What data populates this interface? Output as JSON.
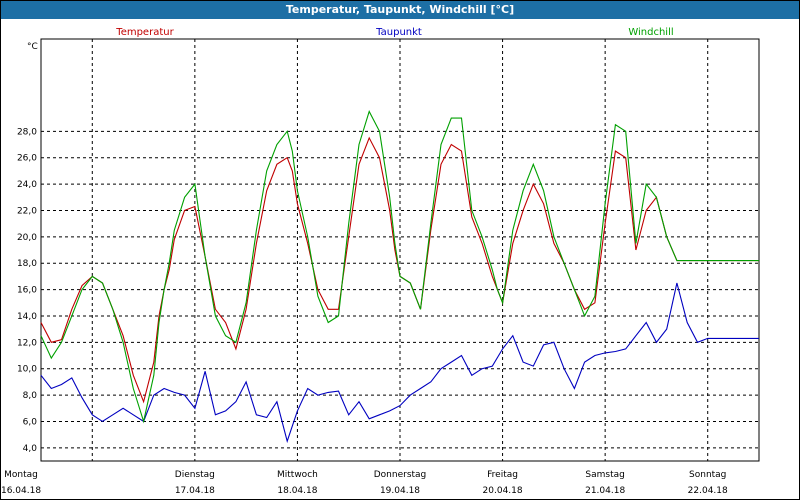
{
  "title": "Temperatur, Taupunkt, Windchill [°C]",
  "chart_data": {
    "type": "line",
    "title": "Temperatur, Taupunkt, Windchill [°C]",
    "y_unit": "°C",
    "ylim": [
      3.0,
      35.0
    ],
    "yticks": [
      "4,0",
      "6,0",
      "8,0",
      "10,0",
      "12,0",
      "14,0",
      "16,0",
      "18,0",
      "20,0",
      "22,0",
      "24,0",
      "26,0",
      "28,0"
    ],
    "ytick_values": [
      4,
      6,
      8,
      10,
      12,
      14,
      16,
      18,
      20,
      22,
      24,
      26,
      28
    ],
    "xlim": [
      0,
      7
    ],
    "grid": true,
    "days": [
      {
        "name": "Montag",
        "date": "16.04.18"
      },
      {
        "name": "Dienstag",
        "date": "17.04.18"
      },
      {
        "name": "Mittwoch",
        "date": "18.04.18"
      },
      {
        "name": "Donnerstag",
        "date": "19.04.18"
      },
      {
        "name": "Freitag",
        "date": "20.04.18"
      },
      {
        "name": "Samstag",
        "date": "21.04.18"
      },
      {
        "name": "Sonntag",
        "date": "22.04.18"
      }
    ],
    "series": [
      {
        "name": "Temperatur",
        "color": "#c00000",
        "x": [
          0,
          0.1,
          0.2,
          0.3,
          0.4,
          0.5,
          0.6,
          0.7,
          0.8,
          0.9,
          1.0,
          1.1,
          1.15,
          1.2,
          1.25,
          1.3,
          1.4,
          1.5,
          1.6,
          1.7,
          1.8,
          1.9,
          2.0,
          2.1,
          2.2,
          2.3,
          2.4,
          2.45,
          2.5,
          2.6,
          2.7,
          2.8,
          2.9,
          3.0,
          3.1,
          3.2,
          3.3,
          3.4,
          3.45,
          3.5,
          3.6,
          3.7,
          3.8,
          3.9,
          4.0,
          4.1,
          4.2,
          4.3,
          4.4,
          4.45,
          4.5,
          4.6,
          4.7,
          4.8,
          4.9,
          5.0,
          5.1,
          5.2,
          5.3,
          5.4,
          5.5,
          5.6,
          5.7,
          5.8,
          5.9,
          6.0,
          6.1,
          6.2,
          6.3,
          6.4,
          6.5,
          6.6,
          6.7,
          6.8,
          6.9,
          7.0
        ],
        "values": [
          13.5,
          12.0,
          12.2,
          14.5,
          16.3,
          17.0,
          16.5,
          14.5,
          12.5,
          9.5,
          7.5,
          10.5,
          14.0,
          16.0,
          17.5,
          19.8,
          22.0,
          22.3,
          18.5,
          14.5,
          13.5,
          11.5,
          14.5,
          19.5,
          23.5,
          25.5,
          26.0,
          25.0,
          22.5,
          19.5,
          16.0,
          14.5,
          14.5,
          20.0,
          25.5,
          27.5,
          26.0,
          22.0,
          19.0,
          17.0,
          16.5,
          14.5,
          20.5,
          25.5,
          27.0,
          26.5,
          21.5,
          19.5,
          17.0,
          16.0,
          15.0,
          19.5,
          22.0,
          24.0,
          22.5,
          19.5,
          18.0,
          16.0,
          14.5,
          15.0,
          21.0,
          26.5,
          26.0,
          19.0,
          22.0,
          23.0,
          20.0,
          18.2,
          18.2,
          18.2,
          18.2,
          18.2,
          18.2,
          18.2,
          18.2,
          18.2
        ]
      },
      {
        "name": "Taupunkt",
        "color": "#0000c0",
        "x": [
          0,
          0.1,
          0.2,
          0.3,
          0.4,
          0.5,
          0.6,
          0.7,
          0.8,
          0.9,
          1.0,
          1.1,
          1.2,
          1.3,
          1.4,
          1.5,
          1.6,
          1.7,
          1.8,
          1.9,
          2.0,
          2.1,
          2.2,
          2.3,
          2.4,
          2.5,
          2.6,
          2.7,
          2.8,
          2.9,
          3.0,
          3.1,
          3.2,
          3.3,
          3.4,
          3.5,
          3.6,
          3.7,
          3.8,
          3.9,
          4.0,
          4.1,
          4.2,
          4.3,
          4.4,
          4.5,
          4.6,
          4.7,
          4.8,
          4.9,
          5.0,
          5.1,
          5.2,
          5.3,
          5.4,
          5.5,
          5.6,
          5.7,
          5.8,
          5.9,
          6.0,
          6.1,
          6.2,
          6.3,
          6.4,
          6.5,
          6.6,
          6.7,
          6.8,
          6.9,
          7.0
        ],
        "values": [
          9.5,
          8.5,
          8.8,
          9.3,
          7.8,
          6.5,
          6.0,
          6.5,
          7.0,
          6.5,
          6.0,
          8.0,
          8.5,
          8.2,
          8.0,
          7.0,
          9.8,
          6.5,
          6.8,
          7.5,
          9.0,
          6.5,
          6.3,
          7.5,
          4.5,
          6.8,
          8.5,
          8.0,
          8.2,
          8.3,
          6.5,
          7.5,
          6.2,
          6.5,
          6.8,
          7.2,
          8.0,
          8.5,
          9.0,
          10.0,
          10.5,
          11.0,
          9.5,
          10.0,
          10.2,
          11.5,
          12.5,
          10.5,
          10.2,
          11.8,
          12.0,
          10.0,
          8.5,
          10.5,
          11.0,
          11.2,
          11.3,
          11.5,
          12.5,
          13.5,
          12.0,
          13.0,
          16.5,
          13.5,
          12.0,
          12.3,
          12.3,
          12.3,
          12.3,
          12.3,
          12.3
        ]
      },
      {
        "name": "Windchill",
        "color": "#00a000",
        "x": [
          0,
          0.1,
          0.2,
          0.3,
          0.4,
          0.5,
          0.6,
          0.7,
          0.8,
          0.9,
          1.0,
          1.1,
          1.15,
          1.2,
          1.25,
          1.3,
          1.4,
          1.5,
          1.6,
          1.7,
          1.8,
          1.9,
          2.0,
          2.1,
          2.2,
          2.3,
          2.4,
          2.45,
          2.5,
          2.6,
          2.7,
          2.8,
          2.9,
          3.0,
          3.1,
          3.2,
          3.3,
          3.4,
          3.45,
          3.5,
          3.6,
          3.7,
          3.8,
          3.9,
          4.0,
          4.1,
          4.2,
          4.3,
          4.4,
          4.45,
          4.5,
          4.6,
          4.7,
          4.8,
          4.9,
          5.0,
          5.1,
          5.2,
          5.3,
          5.4,
          5.5,
          5.6,
          5.7,
          5.8,
          5.9,
          6.0,
          6.1,
          6.2,
          6.3,
          6.4,
          6.5,
          6.6,
          6.7,
          6.8,
          6.9,
          7.0
        ],
        "values": [
          12.5,
          10.8,
          12.0,
          14.0,
          16.0,
          17.0,
          16.5,
          14.5,
          12.0,
          8.5,
          6.0,
          9.5,
          13.5,
          16.0,
          18.0,
          20.5,
          23.0,
          24.0,
          18.5,
          14.0,
          12.5,
          12.0,
          15.0,
          20.5,
          25.0,
          27.0,
          28.0,
          26.5,
          23.5,
          20.0,
          15.5,
          13.5,
          14.0,
          21.0,
          27.0,
          29.5,
          28.0,
          23.0,
          19.5,
          17.0,
          16.5,
          14.5,
          21.0,
          27.0,
          29.0,
          29.0,
          22.0,
          20.0,
          17.5,
          16.0,
          15.0,
          20.5,
          23.5,
          25.5,
          23.5,
          20.0,
          18.0,
          16.0,
          14.0,
          15.5,
          22.5,
          28.5,
          28.0,
          19.5,
          24.0,
          23.0,
          20.0,
          18.2,
          18.2,
          18.2,
          18.2,
          18.2,
          18.2,
          18.2,
          18.2,
          18.2
        ]
      }
    ]
  }
}
